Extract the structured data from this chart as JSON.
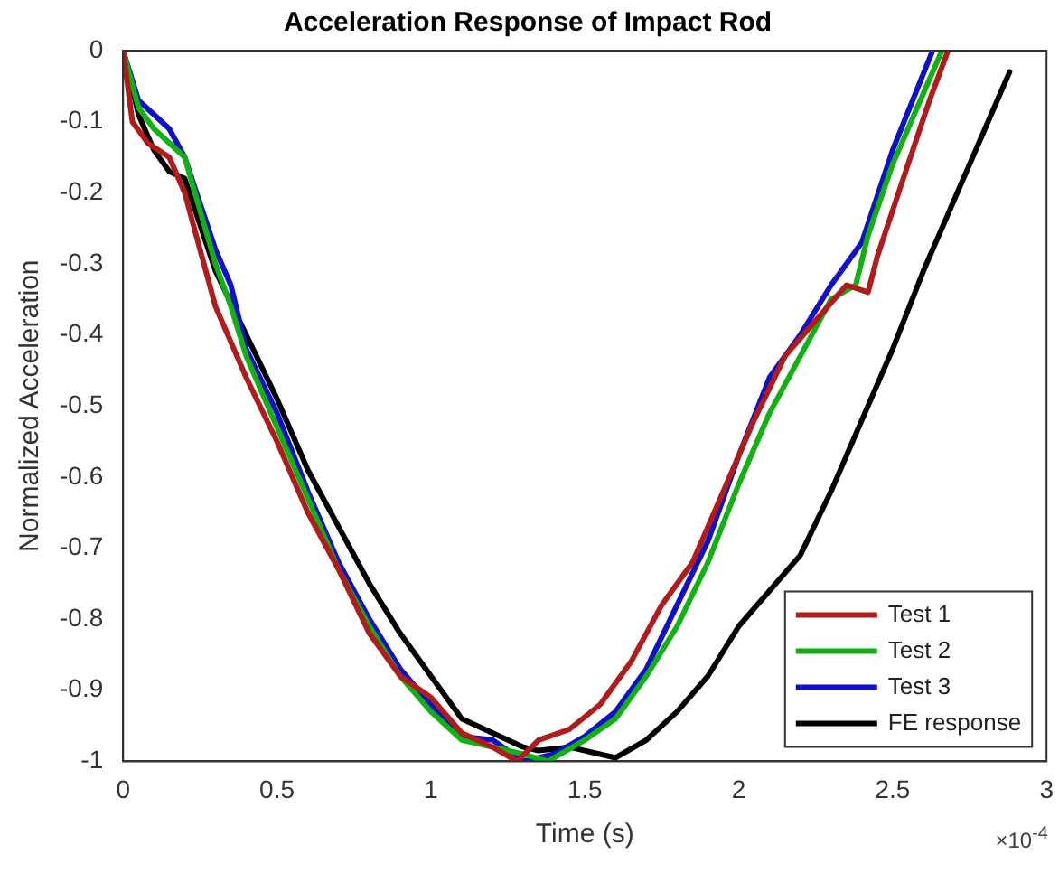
{
  "chart_data": {
    "type": "line",
    "title": "Acceleration Response of Impact Rod",
    "xlabel": "Time (s)",
    "ylabel": "Normalized Acceleration",
    "annotations": [
      "×10$^{-4}$"
    ],
    "xlim": [
      0,
      3
    ],
    "xticks": [
      0,
      0.5,
      1,
      1.5,
      2,
      2.5,
      3
    ],
    "ylim": [
      -1,
      0
    ],
    "yticks": [
      -1,
      -0.9,
      -0.8,
      -0.7,
      -0.6,
      -0.5,
      -0.4,
      -0.3,
      -0.2,
      -0.1,
      0
    ],
    "grid": false,
    "legend": "bottom right",
    "marker": "none",
    "line_style": "solid",
    "series": [
      {
        "name": "Test 1",
        "color": "#b01c1c",
        "x": [
          0,
          0.03,
          0.08,
          0.15,
          0.2,
          0.3,
          0.35,
          0.4,
          0.5,
          0.6,
          0.7,
          0.8,
          0.9,
          1.0,
          1.1,
          1.2,
          1.28,
          1.35,
          1.45,
          1.55,
          1.65,
          1.75,
          1.85,
          1.95,
          2.05,
          2.15,
          2.25,
          2.35,
          2.42,
          2.45,
          2.55,
          2.62,
          2.68
        ],
        "values": [
          0,
          -0.1,
          -0.13,
          -0.15,
          -0.2,
          -0.36,
          -0.41,
          -0.46,
          -0.55,
          -0.65,
          -0.73,
          -0.82,
          -0.88,
          -0.91,
          -0.96,
          -0.98,
          -1.0,
          -0.97,
          -0.955,
          -0.92,
          -0.86,
          -0.78,
          -0.72,
          -0.62,
          -0.52,
          -0.43,
          -0.38,
          -0.33,
          -0.34,
          -0.29,
          -0.16,
          -0.07,
          0
        ]
      },
      {
        "name": "Test 2",
        "color": "#12b012",
        "x": [
          0,
          0.05,
          0.1,
          0.15,
          0.2,
          0.3,
          0.35,
          0.4,
          0.5,
          0.6,
          0.7,
          0.8,
          0.9,
          1.0,
          1.1,
          1.2,
          1.3,
          1.38,
          1.5,
          1.6,
          1.7,
          1.8,
          1.9,
          2.0,
          2.1,
          2.2,
          2.3,
          2.38,
          2.42,
          2.5,
          2.6,
          2.66
        ],
        "values": [
          0,
          -0.08,
          -0.11,
          -0.13,
          -0.15,
          -0.3,
          -0.36,
          -0.43,
          -0.53,
          -0.63,
          -0.73,
          -0.81,
          -0.88,
          -0.93,
          -0.97,
          -0.98,
          -0.99,
          -1.0,
          -0.97,
          -0.94,
          -0.88,
          -0.81,
          -0.72,
          -0.61,
          -0.51,
          -0.43,
          -0.35,
          -0.33,
          -0.26,
          -0.16,
          -0.06,
          0
        ]
      },
      {
        "name": "Test 3",
        "color": "#1010c8",
        "x": [
          0,
          0.05,
          0.1,
          0.15,
          0.2,
          0.3,
          0.35,
          0.4,
          0.5,
          0.6,
          0.7,
          0.8,
          0.9,
          1.0,
          1.1,
          1.2,
          1.3,
          1.4,
          1.5,
          1.6,
          1.7,
          1.8,
          1.9,
          2.0,
          2.1,
          2.2,
          2.3,
          2.4,
          2.5,
          2.63
        ],
        "values": [
          0,
          -0.07,
          -0.09,
          -0.11,
          -0.15,
          -0.28,
          -0.33,
          -0.42,
          -0.51,
          -0.62,
          -0.72,
          -0.8,
          -0.87,
          -0.92,
          -0.965,
          -0.97,
          -1.0,
          -0.99,
          -0.965,
          -0.93,
          -0.87,
          -0.78,
          -0.69,
          -0.57,
          -0.46,
          -0.4,
          -0.33,
          -0.27,
          -0.14,
          0
        ]
      },
      {
        "name": "FE response",
        "color": "#000000",
        "x": [
          0,
          0.05,
          0.1,
          0.15,
          0.2,
          0.3,
          0.4,
          0.5,
          0.6,
          0.7,
          0.8,
          0.9,
          1.0,
          1.1,
          1.2,
          1.3,
          1.35,
          1.45,
          1.5,
          1.6,
          1.7,
          1.8,
          1.9,
          2.0,
          2.1,
          2.2,
          2.3,
          2.4,
          2.5,
          2.6,
          2.7,
          2.8,
          2.88
        ],
        "values": [
          0,
          -0.09,
          -0.14,
          -0.17,
          -0.18,
          -0.31,
          -0.4,
          -0.49,
          -0.59,
          -0.67,
          -0.75,
          -0.82,
          -0.88,
          -0.94,
          -0.96,
          -0.98,
          -0.985,
          -0.98,
          -0.985,
          -0.995,
          -0.97,
          -0.93,
          -0.88,
          -0.81,
          -0.76,
          -0.71,
          -0.62,
          -0.52,
          -0.42,
          -0.31,
          -0.21,
          -0.11,
          -0.03
        ]
      }
    ]
  }
}
